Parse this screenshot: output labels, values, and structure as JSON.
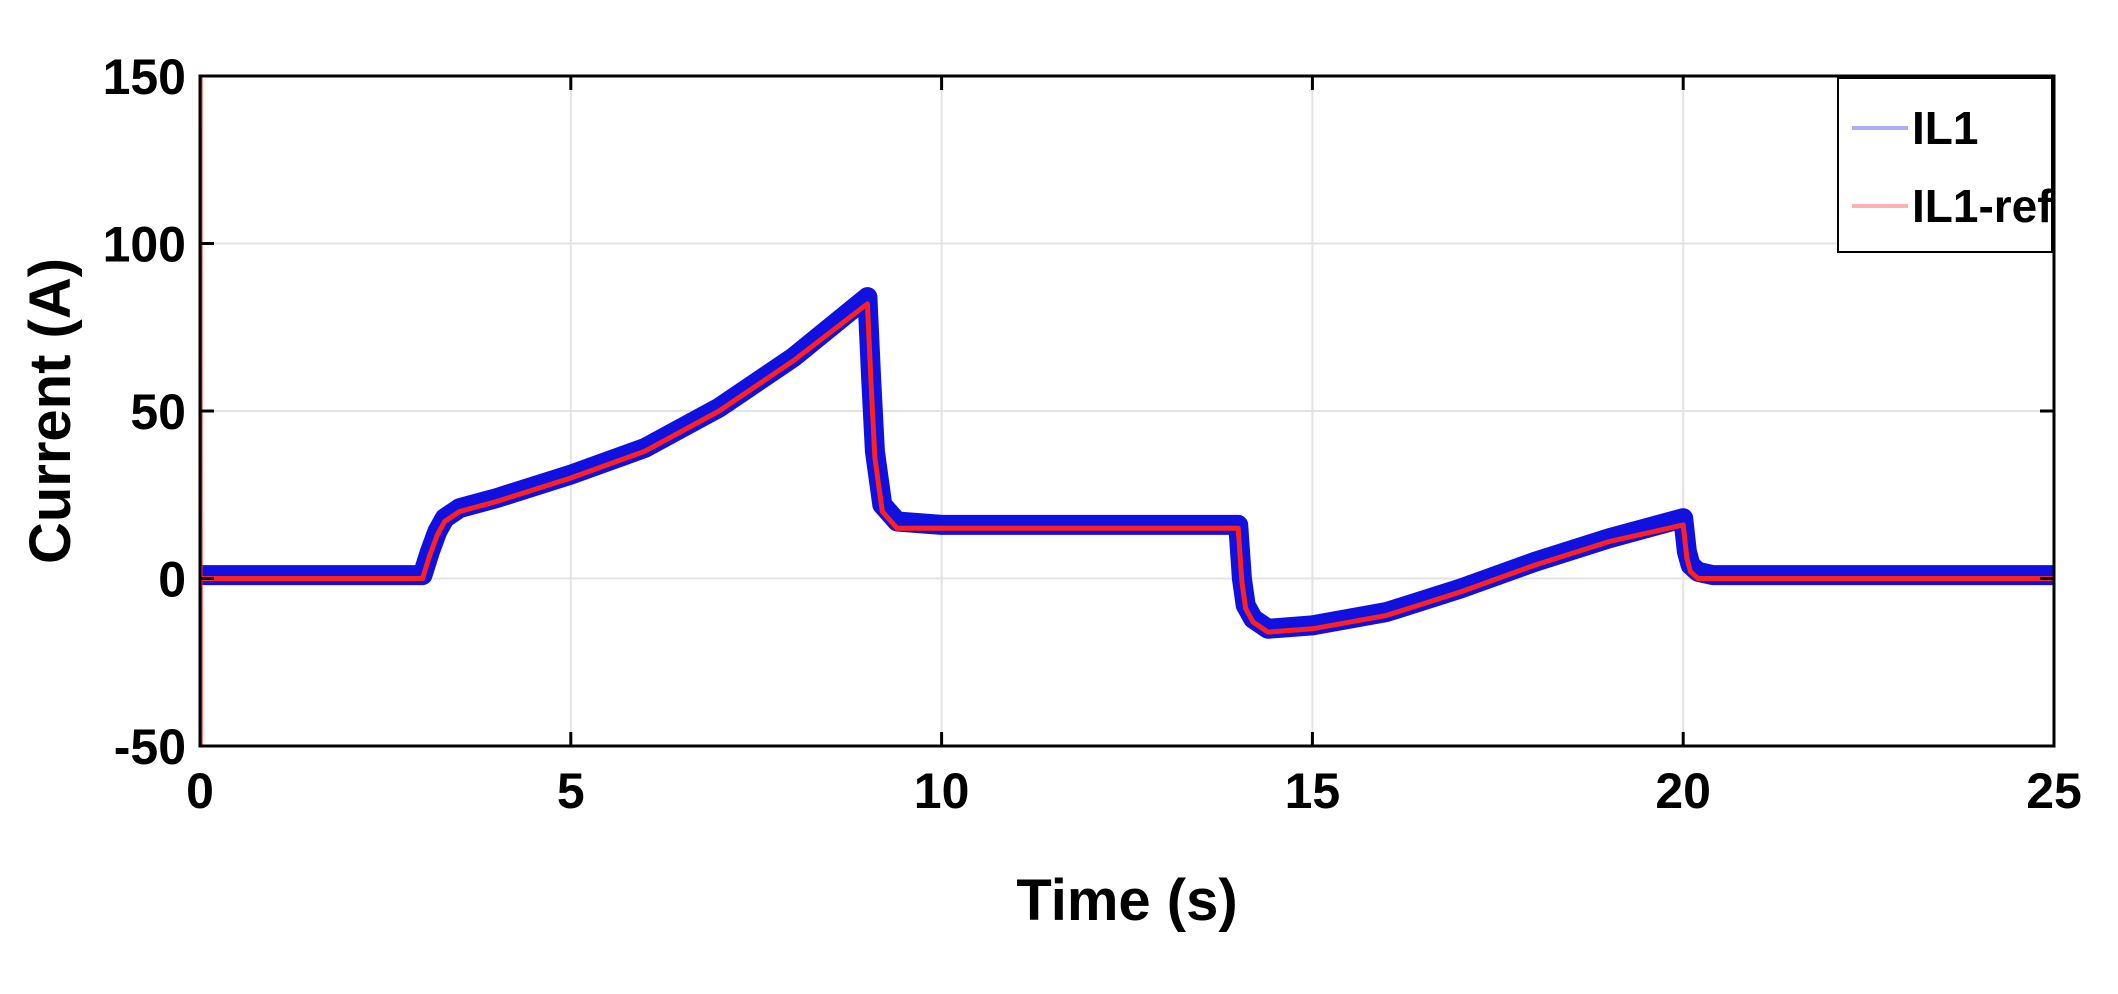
{
  "chart_data": {
    "type": "line",
    "xlabel": "Time (s)",
    "ylabel": "Current (A)",
    "xlim": [
      0,
      25
    ],
    "ylim": [
      -50,
      150
    ],
    "xticks": [
      0,
      5,
      10,
      15,
      20,
      25
    ],
    "yticks": [
      -50,
      0,
      50,
      100,
      150
    ],
    "xtick_labels": [
      "0",
      "5",
      "10",
      "15",
      "20",
      "25"
    ],
    "ytick_labels": [
      "-50",
      "0",
      "50",
      "100",
      "150"
    ],
    "grid": true,
    "legend_position": "top-right",
    "series": [
      {
        "name": "IL1",
        "color": "#1010e0",
        "style": "thick band (ripple ±2 A)",
        "x": [
          0,
          3.0,
          3.1,
          3.2,
          3.3,
          3.5,
          4,
          5,
          6,
          7,
          8,
          9.0,
          9.05,
          9.1,
          9.2,
          9.4,
          10,
          12,
          14.0,
          14.05,
          14.1,
          14.2,
          14.4,
          15,
          16,
          17,
          18,
          19,
          20.0,
          20.05,
          20.1,
          20.2,
          20.4,
          22,
          25
        ],
        "y": [
          1,
          1,
          8,
          14,
          18,
          21,
          24,
          31,
          39,
          51,
          66,
          84,
          60,
          38,
          22,
          17,
          16,
          16,
          16,
          0,
          -8,
          -12,
          -15,
          -14,
          -10,
          -3,
          5,
          12,
          18,
          8,
          4,
          2,
          1,
          1,
          1
        ]
      },
      {
        "name": "IL1-ref",
        "color": "#ff2020",
        "style": "thin line",
        "x": [
          0,
          0.001,
          0.002,
          0.01,
          3.0,
          3.1,
          3.2,
          3.3,
          3.5,
          4,
          5,
          6,
          7,
          8,
          9.0,
          9.05,
          9.1,
          9.2,
          9.4,
          10,
          12,
          14.0,
          14.05,
          14.1,
          14.2,
          14.4,
          15,
          16,
          17,
          18,
          19,
          20.0,
          20.05,
          20.1,
          20.2,
          20.4,
          22,
          25
        ],
        "y": [
          150,
          -50,
          0,
          0,
          0,
          7,
          13,
          17,
          20,
          23,
          30,
          38,
          50,
          65,
          82,
          58,
          36,
          20,
          15,
          15,
          15,
          15,
          -1,
          -9,
          -13,
          -16,
          -15,
          -11,
          -4,
          4,
          11,
          16,
          6,
          2,
          0,
          0,
          0,
          0
        ]
      }
    ]
  },
  "colors": {
    "axes": "#000000",
    "grid": "#e3e3e3",
    "background": "#ffffff"
  }
}
